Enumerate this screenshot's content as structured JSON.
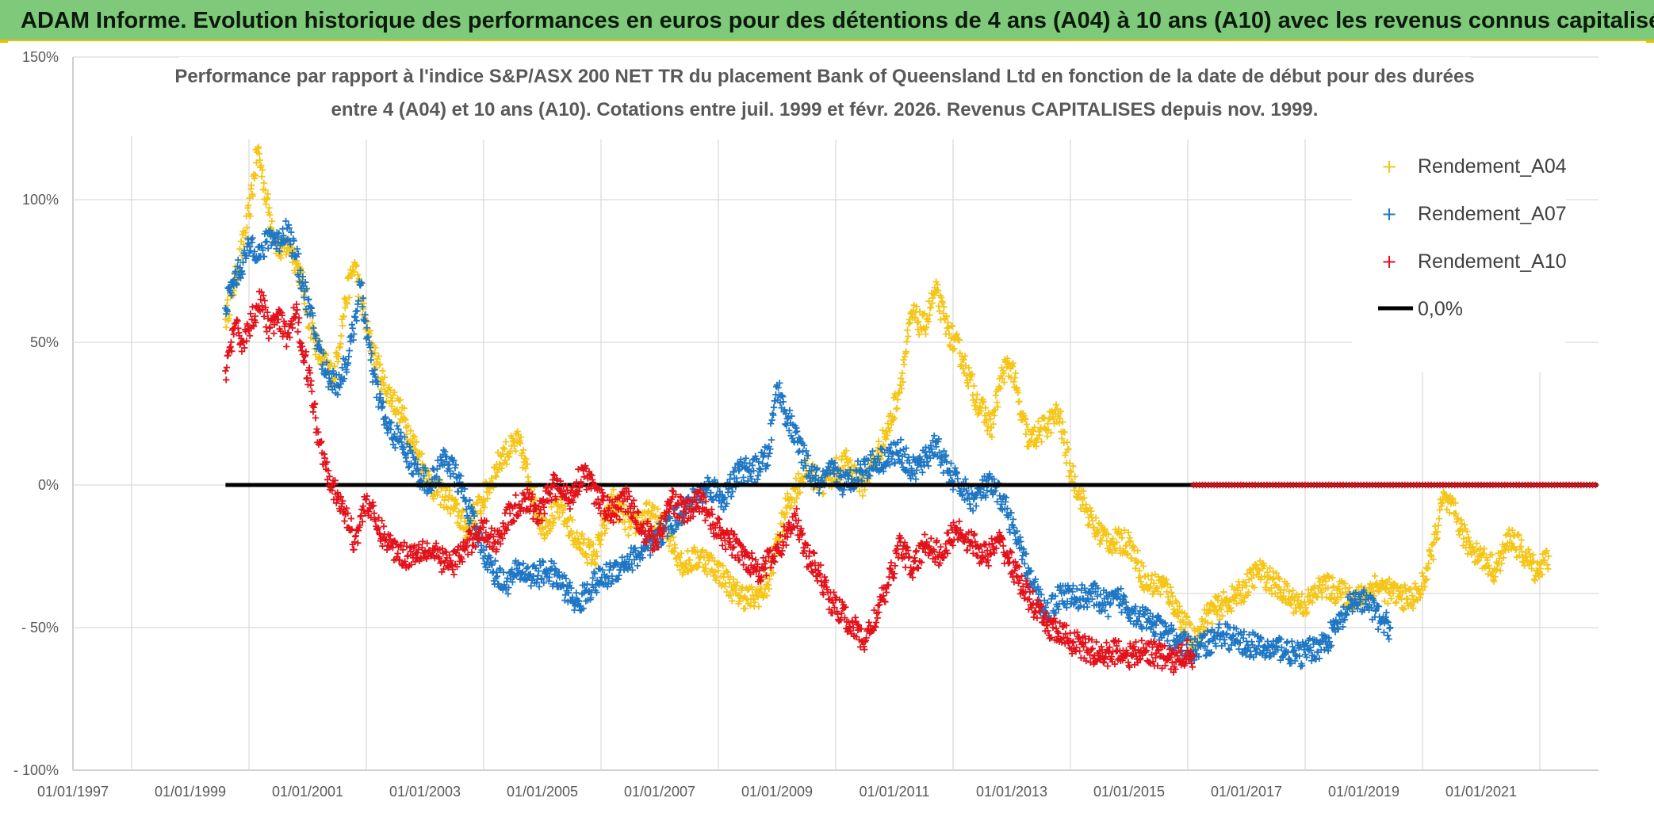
{
  "header": {
    "title": "ADAM Informe. Evolution historique des performances en euros pour des détentions de 4 ans (A04) à 10 ans (A10) avec les revenus connus capitalisés"
  },
  "colors": {
    "banner": "#7ec97a",
    "A04": "#f5c518",
    "A07": "#1f77c4",
    "A10": "#e3121b",
    "zero_line": "#000000",
    "grid": "#d9d9d9"
  },
  "chart_data": {
    "type": "scatter",
    "title_line1": "Performance par rapport à l'indice S&P/ASX 200 NET TR  du placement Bank of Queensland Ltd en fonction de la date de début pour des durées",
    "title_line2": "entre 4 (A04) et 10 ans (A10). Cotations entre juil. 1999 et févr. 2026. Revenus CAPITALISES depuis nov. 1999.",
    "xlabel": "",
    "ylabel": "",
    "xlim": [
      1997.0,
      2023.0
    ],
    "ylim": [
      -100,
      150
    ],
    "x_ticks": [
      {
        "x": 1997,
        "label": "01/01/1997"
      },
      {
        "x": 1999,
        "label": "01/01/1999"
      },
      {
        "x": 2001,
        "label": "01/01/2001"
      },
      {
        "x": 2003,
        "label": "01/01/2003"
      },
      {
        "x": 2005,
        "label": "01/01/2005"
      },
      {
        "x": 2007,
        "label": "01/01/2007"
      },
      {
        "x": 2009,
        "label": "01/01/2009"
      },
      {
        "x": 2011,
        "label": "01/01/2011"
      },
      {
        "x": 2013,
        "label": "01/01/2013"
      },
      {
        "x": 2015,
        "label": "01/01/2015"
      },
      {
        "x": 2017,
        "label": "01/01/2017"
      },
      {
        "x": 2019,
        "label": "01/01/2019"
      },
      {
        "x": 2021,
        "label": "01/01/2021"
      }
    ],
    "y_ticks": [
      {
        "y": 150,
        "label": "150%"
      },
      {
        "y": 100,
        "label": "100%"
      },
      {
        "y": 50,
        "label": "50%"
      },
      {
        "y": 0,
        "label": "0%"
      },
      {
        "y": -50,
        "label": "- 50%"
      },
      {
        "y": -100,
        "label": "- 100%"
      }
    ],
    "legend_position": "top-right",
    "series": [
      {
        "name": "Rendement_A04",
        "color": "#f5c518",
        "x": [
          1999.6,
          1999.8,
          2000.0,
          2000.15,
          2000.3,
          2000.5,
          2000.7,
          2000.9,
          2001.0,
          2001.2,
          2001.45,
          2001.65,
          2001.8,
          2002.0,
          2002.3,
          2002.6,
          2002.9,
          2003.1,
          2003.4,
          2003.7,
          2004.0,
          2004.3,
          2004.6,
          2004.8,
          2005.0,
          2005.3,
          2005.6,
          2005.9,
          2006.2,
          2006.5,
          2006.8,
          2007.1,
          2007.4,
          2007.7,
          2008.0,
          2008.3,
          2008.6,
          2008.85,
          2009.0,
          2009.2,
          2009.5,
          2009.8,
          2010.0,
          2010.2,
          2010.45,
          2010.7,
          2010.9,
          2011.1,
          2011.3,
          2011.5,
          2011.7,
          2011.9,
          2012.15,
          2012.4,
          2012.65,
          2012.85,
          2013.0,
          2013.15,
          2013.3,
          2013.55,
          2013.8,
          2014.0,
          2014.2,
          2014.4,
          2014.7,
          2015.0,
          2015.3,
          2015.6,
          2015.85,
          2016.1,
          2016.35,
          2016.6,
          2016.9,
          2017.2,
          2017.5,
          2017.75,
          2018.0,
          2018.3,
          2018.6,
          2018.9,
          2019.2,
          2019.5,
          2019.75,
          2019.95,
          2020.15,
          2020.35,
          2020.55,
          2020.75,
          2021.0,
          2021.25,
          2021.5,
          2021.75,
          2021.95,
          2022.15
        ],
        "values": [
          58,
          75,
          95,
          118,
          100,
          82,
          84,
          72,
          60,
          45,
          38,
          65,
          78,
          55,
          35,
          25,
          10,
          0,
          -5,
          -15,
          -5,
          10,
          15,
          0,
          -15,
          -8,
          -20,
          -25,
          -5,
          -15,
          -10,
          -15,
          -28,
          -25,
          -30,
          -38,
          -40,
          -35,
          -20,
          -5,
          5,
          0,
          5,
          8,
          0,
          10,
          20,
          35,
          60,
          55,
          68,
          55,
          45,
          30,
          20,
          40,
          42,
          25,
          15,
          20,
          25,
          5,
          -5,
          -15,
          -20,
          -20,
          -35,
          -35,
          -45,
          -55,
          -45,
          -42,
          -38,
          -30,
          -35,
          -40,
          -42,
          -35,
          -38,
          -40,
          -35,
          -38,
          -40,
          -38,
          -25,
          -5,
          -10,
          -20,
          -25,
          -30,
          -18,
          -25,
          -30,
          -25
        ]
      },
      {
        "name": "Rendement_A07",
        "color": "#1f77c4",
        "x": [
          1999.6,
          1999.75,
          1999.9,
          2000.05,
          2000.2,
          2000.35,
          2000.5,
          2000.65,
          2000.8,
          2000.95,
          2001.1,
          2001.3,
          2001.5,
          2001.7,
          2001.9,
          2002.1,
          2002.35,
          2002.6,
          2002.85,
          2003.1,
          2003.35,
          2003.6,
          2003.85,
          2004.1,
          2004.35,
          2004.6,
          2004.85,
          2005.1,
          2005.35,
          2005.6,
          2005.85,
          2006.1,
          2006.35,
          2006.6,
          2006.85,
          2007.1,
          2007.35,
          2007.6,
          2007.85,
          2008.1,
          2008.35,
          2008.6,
          2008.85,
          2009.0,
          2009.15,
          2009.35,
          2009.55,
          2009.75,
          2009.95,
          2010.15,
          2010.4,
          2010.65,
          2010.9,
          2011.1,
          2011.3,
          2011.5,
          2011.7,
          2011.9,
          2012.1,
          2012.35,
          2012.6,
          2012.85,
          2013.1,
          2013.35,
          2013.6,
          2013.85,
          2014.1,
          2014.35,
          2014.6,
          2014.85,
          2015.1,
          2015.35,
          2015.6,
          2015.85,
          2016.1,
          2016.35,
          2016.6,
          2016.85,
          2017.1,
          2017.35,
          2017.6,
          2017.85,
          2018.1,
          2018.35,
          2018.6,
          2018.85,
          2019.1,
          2019.3,
          2019.45
        ],
        "values": [
          62,
          72,
          78,
          85,
          80,
          88,
          85,
          90,
          80,
          68,
          55,
          40,
          35,
          45,
          70,
          40,
          20,
          15,
          5,
          0,
          10,
          0,
          -15,
          -28,
          -35,
          -30,
          -32,
          -30,
          -35,
          -42,
          -35,
          -32,
          -28,
          -25,
          -22,
          -15,
          -10,
          -5,
          0,
          -5,
          5,
          5,
          10,
          35,
          25,
          15,
          5,
          0,
          5,
          0,
          5,
          8,
          10,
          12,
          5,
          8,
          15,
          5,
          0,
          -5,
          0,
          -5,
          -20,
          -35,
          -45,
          -38,
          -40,
          -38,
          -42,
          -40,
          -45,
          -48,
          -52,
          -55,
          -58,
          -55,
          -52,
          -55,
          -56,
          -58,
          -57,
          -60,
          -58,
          -55,
          -48,
          -40,
          -42,
          -48,
          -50
        ]
      },
      {
        "name": "Rendement_A10",
        "color": "#e3121b",
        "x": [
          1999.6,
          1999.75,
          1999.9,
          2000.05,
          2000.2,
          2000.35,
          2000.5,
          2000.65,
          2000.8,
          2000.95,
          2001.05,
          2001.2,
          2001.35,
          2001.5,
          2001.65,
          2001.8,
          2002.0,
          2002.2,
          2002.45,
          2002.7,
          2002.95,
          2003.2,
          2003.45,
          2003.7,
          2003.95,
          2004.2,
          2004.45,
          2004.7,
          2004.95,
          2005.2,
          2005.45,
          2005.7,
          2005.95,
          2006.2,
          2006.45,
          2006.7,
          2006.95,
          2007.2,
          2007.45,
          2007.7,
          2007.95,
          2008.2,
          2008.45,
          2008.7,
          2008.95,
          2009.1,
          2009.3,
          2009.5,
          2009.7,
          2009.9,
          2010.1,
          2010.3,
          2010.5,
          2010.7,
          2010.9,
          2011.1,
          2011.3,
          2011.55,
          2011.8,
          2012.05,
          2012.3,
          2012.55,
          2012.8,
          2013.05,
          2013.3,
          2013.55,
          2013.8,
          2014.05,
          2014.3,
          2014.55,
          2014.8,
          2015.05,
          2015.3,
          2015.55,
          2015.8,
          2016.0,
          2016.1
        ],
        "values": [
          40,
          55,
          50,
          58,
          65,
          55,
          58,
          52,
          60,
          45,
          35,
          15,
          5,
          -5,
          -10,
          -20,
          -5,
          -15,
          -22,
          -25,
          -22,
          -25,
          -28,
          -22,
          -15,
          -20,
          -10,
          -5,
          -10,
          0,
          -5,
          5,
          -5,
          -10,
          -5,
          -15,
          -20,
          -5,
          -10,
          -5,
          -15,
          -20,
          -25,
          -30,
          -25,
          -20,
          -10,
          -25,
          -30,
          -40,
          -45,
          -50,
          -55,
          -45,
          -35,
          -20,
          -30,
          -20,
          -25,
          -15,
          -20,
          -25,
          -20,
          -30,
          -40,
          -48,
          -52,
          -55,
          -58,
          -60,
          -58,
          -60,
          -58,
          -60,
          -62,
          -58,
          -60
        ]
      },
      {
        "name": "0,0%",
        "color": "#000000",
        "x": [
          1999.6,
          2022.99
        ],
        "values": [
          0,
          0
        ]
      }
    ]
  },
  "legend": {
    "A04": "Rendement_A04",
    "A07": "Rendement_A07",
    "A10": "Rendement_A10",
    "zero": "0,0%"
  }
}
